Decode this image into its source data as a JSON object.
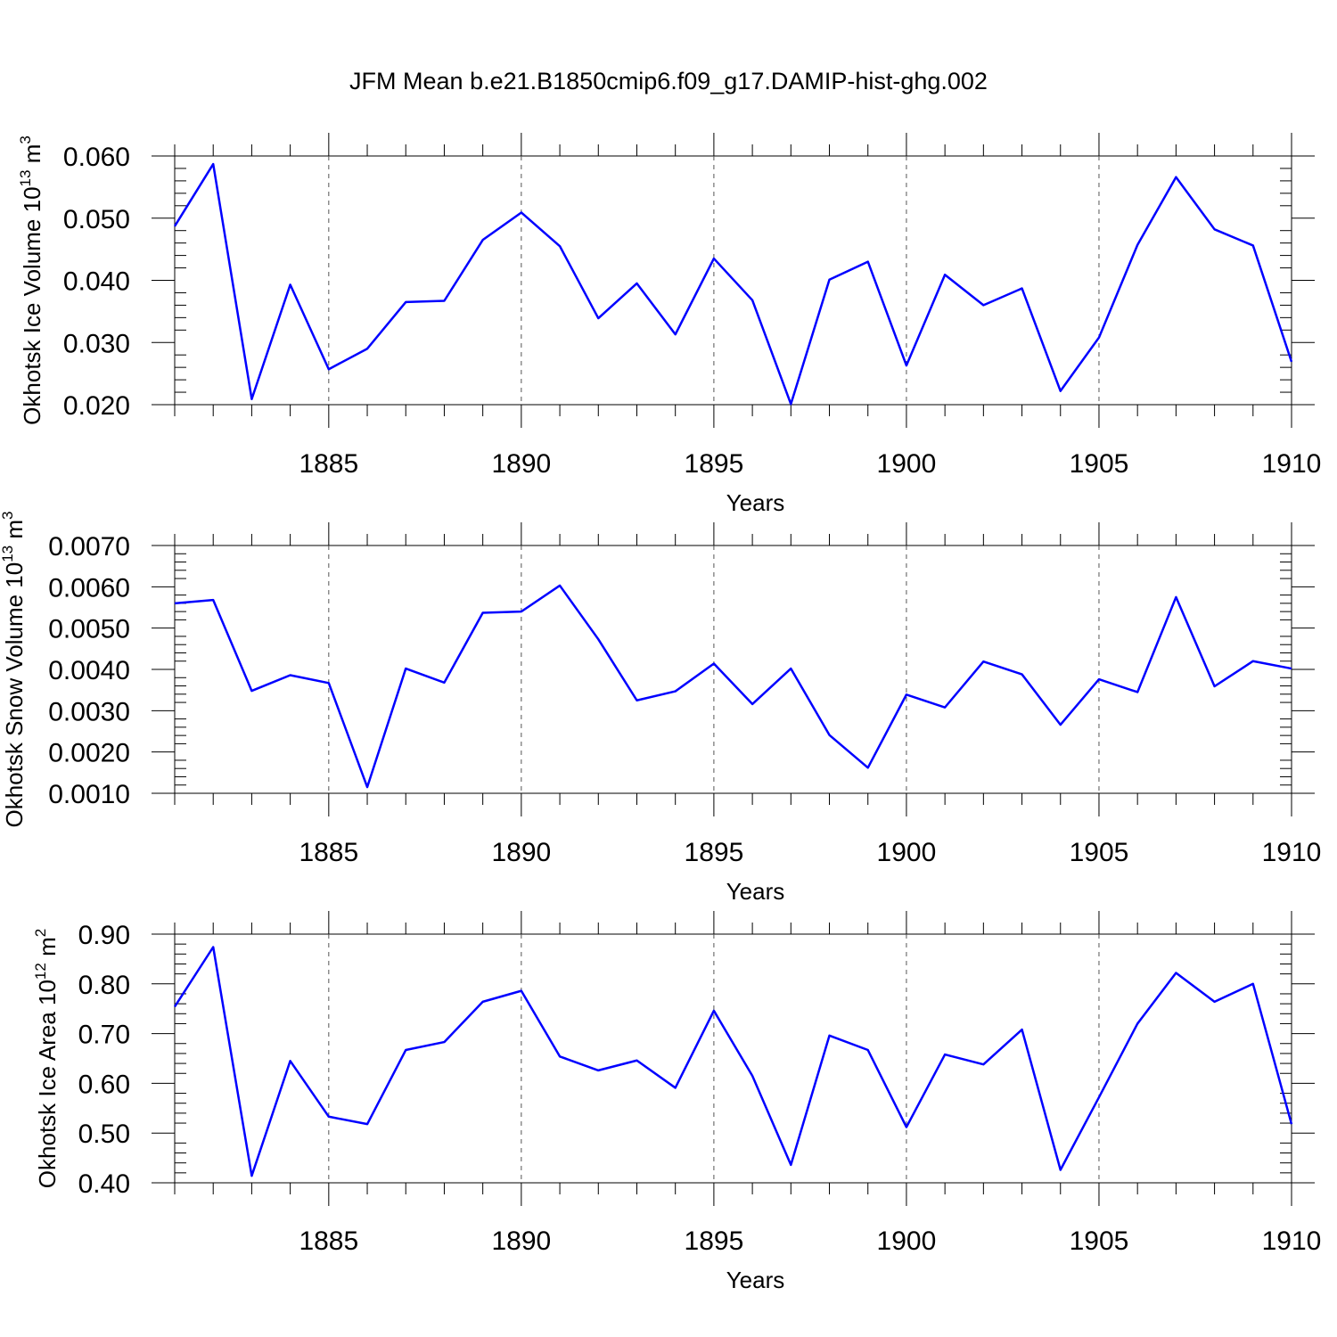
{
  "title": "JFM Mean b.e21.B1850cmip6.f09_g17.DAMIP-hist-ghg.002",
  "colors": {
    "line": "#0000ff",
    "axis": "#000000",
    "grid": "#555555"
  },
  "chart_data": [
    {
      "type": "line",
      "xlabel": "Years",
      "ylabel": {
        "main": "Okhotsk Ice Volume 10",
        "exp": "13",
        "unit": " m",
        "unit_exp": "3"
      },
      "xlim": [
        1881,
        1910
      ],
      "ylim": [
        0.02,
        0.06
      ],
      "x_ticks": [
        1885,
        1890,
        1895,
        1900,
        1905,
        1910
      ],
      "y_ticks": [
        0.02,
        0.03,
        0.04,
        0.05,
        0.06
      ],
      "y_tick_labels": [
        "0.020",
        "0.030",
        "0.040",
        "0.050",
        "0.060"
      ],
      "grid": "vertical dashed at x ticks",
      "x": [
        1881,
        1882,
        1883,
        1884,
        1885,
        1886,
        1887,
        1888,
        1889,
        1890,
        1891,
        1892,
        1893,
        1894,
        1895,
        1896,
        1897,
        1898,
        1899,
        1900,
        1901,
        1902,
        1903,
        1904,
        1905,
        1906,
        1907,
        1908,
        1909,
        1910
      ],
      "values": [
        0.0487,
        0.0587,
        0.0209,
        0.0393,
        0.0257,
        0.029,
        0.0365,
        0.0367,
        0.0465,
        0.0509,
        0.0455,
        0.0339,
        0.0395,
        0.0313,
        0.0435,
        0.0368,
        0.0201,
        0.0401,
        0.043,
        0.0263,
        0.0409,
        0.036,
        0.0387,
        0.0222,
        0.0308,
        0.0457,
        0.0566,
        0.0482,
        0.0456,
        0.0269
      ]
    },
    {
      "type": "line",
      "xlabel": "Years",
      "ylabel": {
        "main": "Okhotsk Snow Volume 10",
        "exp": "13",
        "unit": " m",
        "unit_exp": "3"
      },
      "xlim": [
        1881,
        1910
      ],
      "ylim": [
        0.001,
        0.007
      ],
      "x_ticks": [
        1885,
        1890,
        1895,
        1900,
        1905,
        1910
      ],
      "y_ticks": [
        0.001,
        0.002,
        0.003,
        0.004,
        0.005,
        0.006,
        0.007
      ],
      "y_tick_labels": [
        "0.0010",
        "0.0020",
        "0.0030",
        "0.0040",
        "0.0050",
        "0.0060",
        "0.0070"
      ],
      "grid": "vertical dashed at x ticks",
      "x": [
        1881,
        1882,
        1883,
        1884,
        1885,
        1886,
        1887,
        1888,
        1889,
        1890,
        1891,
        1892,
        1893,
        1894,
        1895,
        1896,
        1897,
        1898,
        1899,
        1900,
        1901,
        1902,
        1903,
        1904,
        1905,
        1906,
        1907,
        1908,
        1909,
        1910
      ],
      "values": [
        0.0056,
        0.00568,
        0.00348,
        0.00386,
        0.00367,
        0.00115,
        0.00402,
        0.00368,
        0.00537,
        0.0054,
        0.00603,
        0.00473,
        0.00325,
        0.00347,
        0.00414,
        0.00316,
        0.00402,
        0.00241,
        0.00162,
        0.00339,
        0.00308,
        0.00419,
        0.00388,
        0.00266,
        0.00376,
        0.00345,
        0.00575,
        0.00359,
        0.0042,
        0.00402
      ]
    },
    {
      "type": "line",
      "xlabel": "Years",
      "ylabel": {
        "main": "Okhotsk Ice Area 10",
        "exp": "12",
        "unit": " m",
        "unit_exp": "2"
      },
      "xlim": [
        1881,
        1910
      ],
      "ylim": [
        0.4,
        0.9
      ],
      "x_ticks": [
        1885,
        1890,
        1895,
        1900,
        1905,
        1910
      ],
      "y_ticks": [
        0.4,
        0.5,
        0.6,
        0.7,
        0.8,
        0.9
      ],
      "y_tick_labels": [
        "0.40",
        "0.50",
        "0.60",
        "0.70",
        "0.80",
        "0.90"
      ],
      "grid": "vertical dashed at x ticks",
      "x": [
        1881,
        1882,
        1883,
        1884,
        1885,
        1886,
        1887,
        1888,
        1889,
        1890,
        1891,
        1892,
        1893,
        1894,
        1895,
        1896,
        1897,
        1898,
        1899,
        1900,
        1901,
        1902,
        1903,
        1904,
        1905,
        1906,
        1907,
        1908,
        1909,
        1910
      ],
      "values": [
        0.754,
        0.874,
        0.414,
        0.645,
        0.533,
        0.518,
        0.667,
        0.683,
        0.764,
        0.786,
        0.654,
        0.626,
        0.646,
        0.591,
        0.746,
        0.615,
        0.436,
        0.696,
        0.667,
        0.512,
        0.658,
        0.638,
        0.708,
        0.426,
        0.572,
        0.72,
        0.822,
        0.764,
        0.8,
        0.518
      ]
    }
  ]
}
